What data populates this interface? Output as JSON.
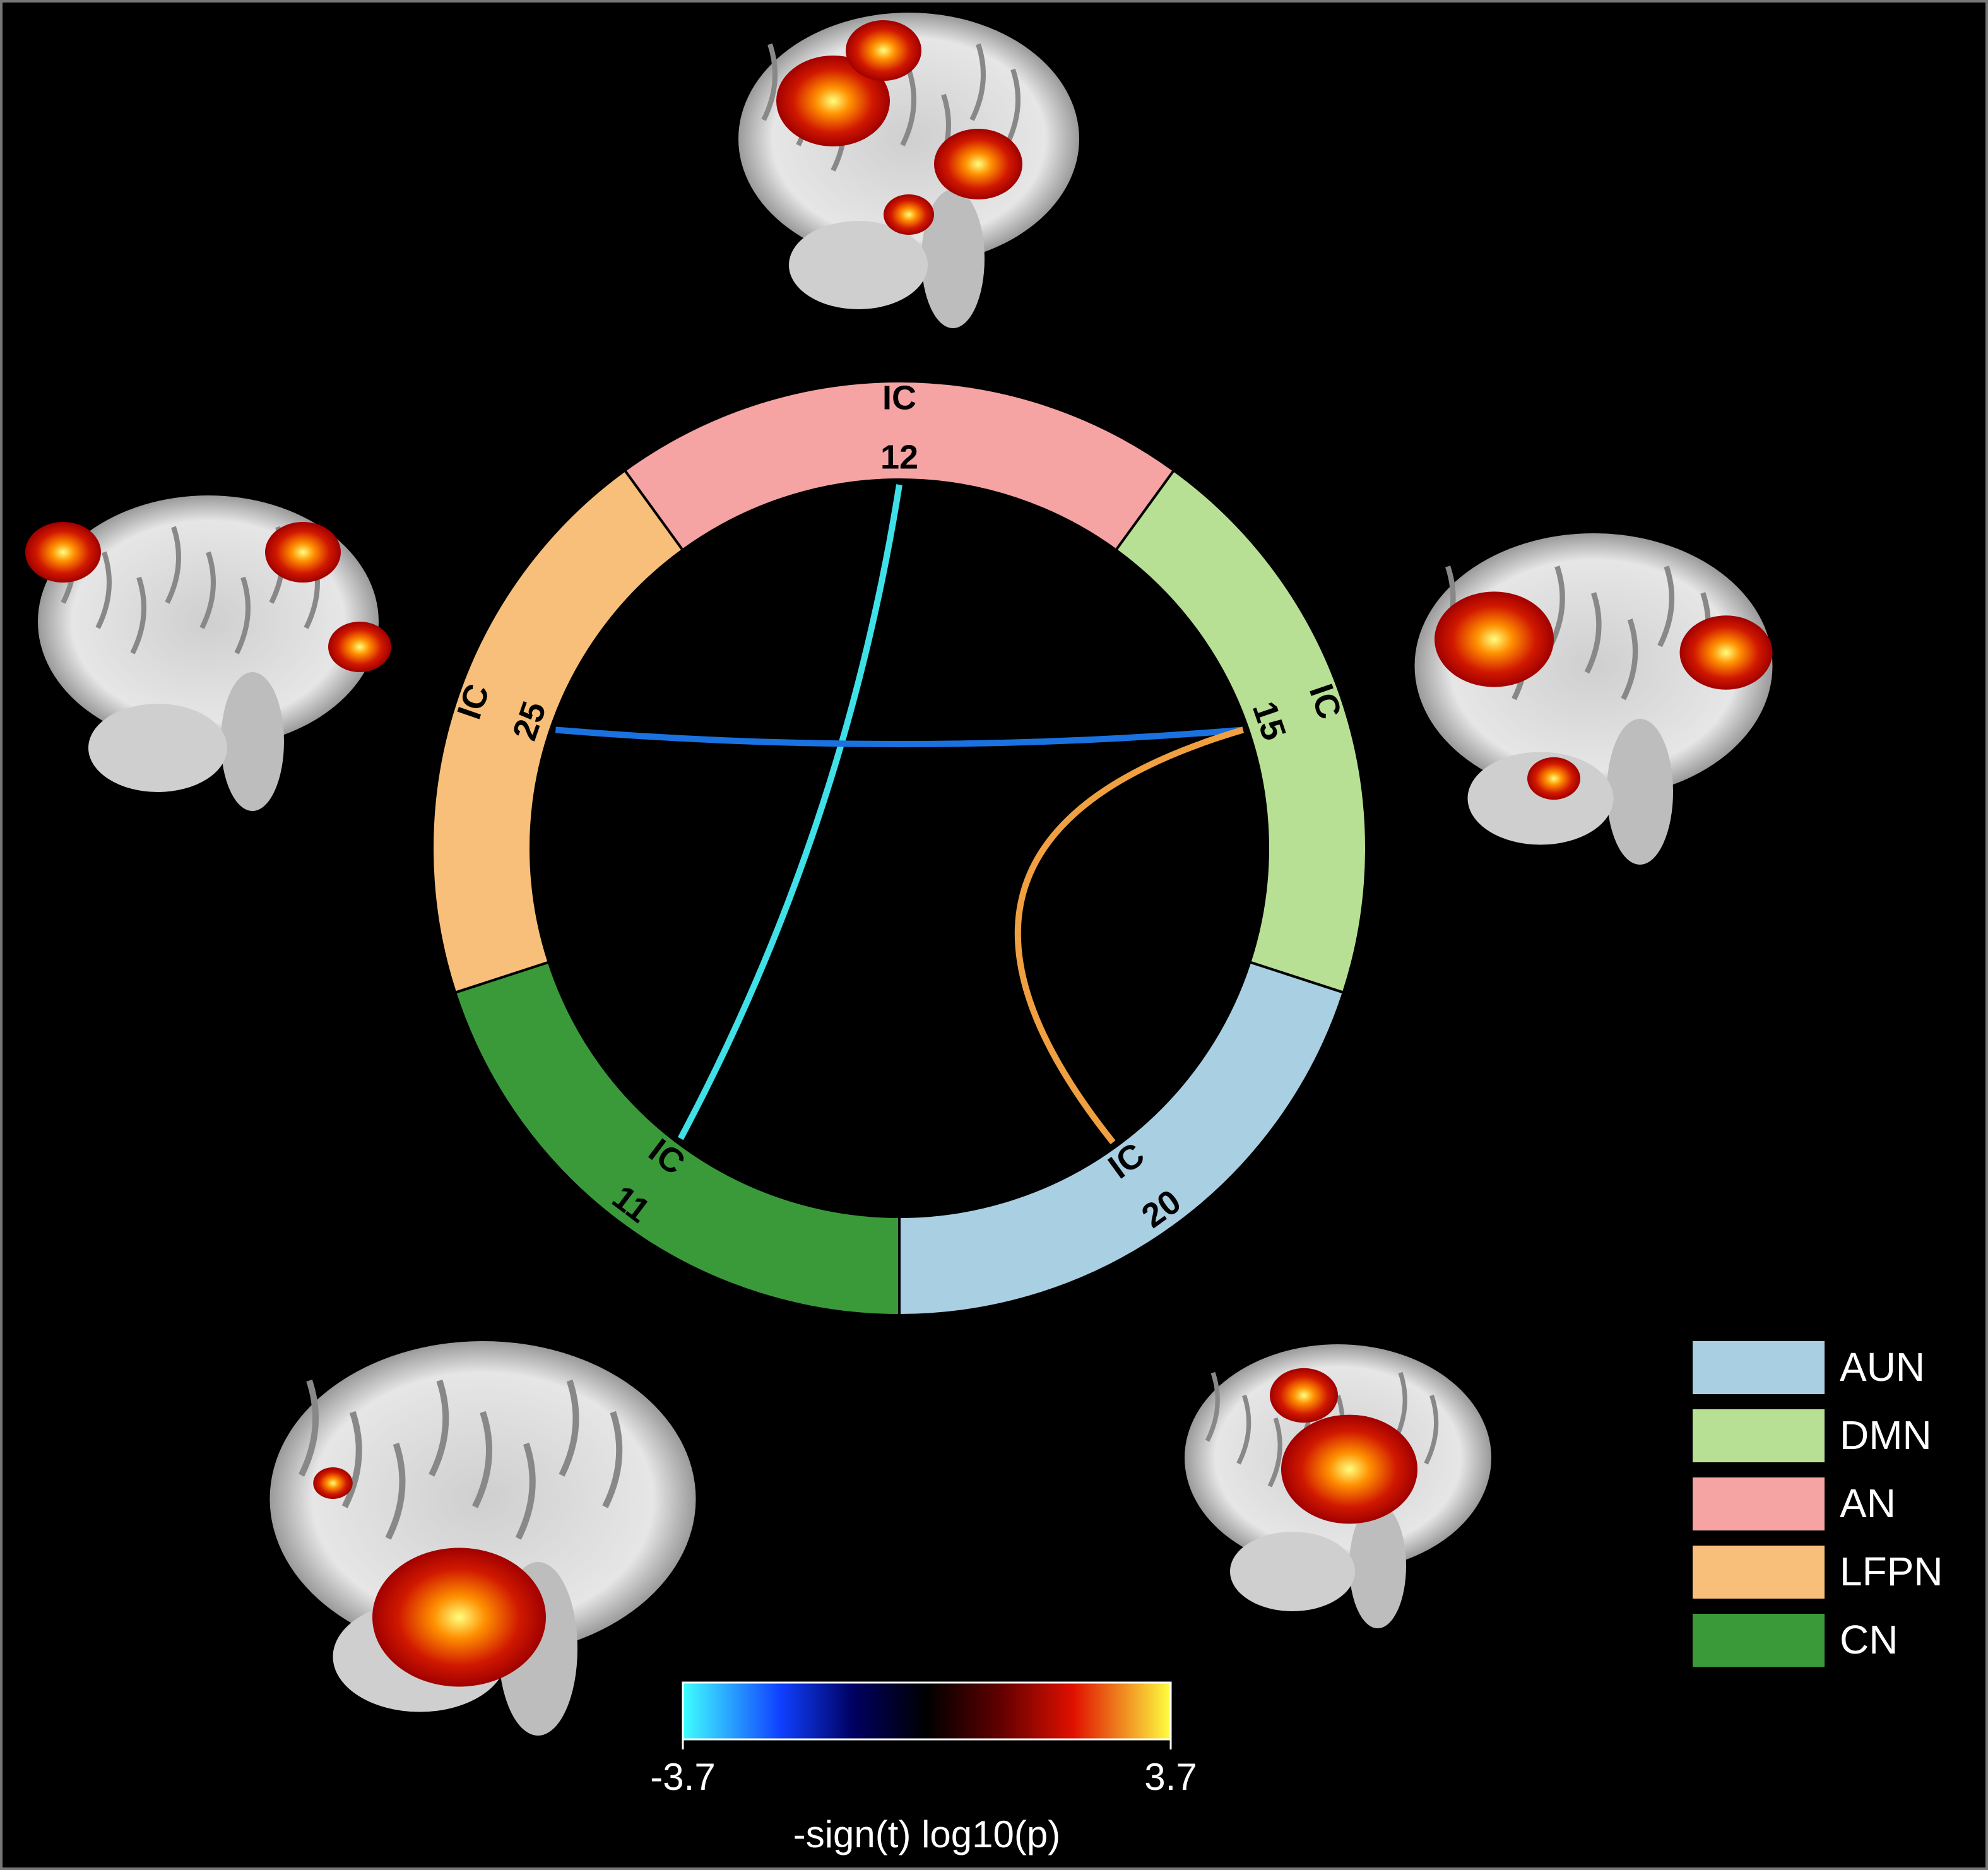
{
  "diagram": {
    "nodes": [
      {
        "label": "IC",
        "number": "12",
        "color": "#f5a3a3"
      },
      {
        "label": "IC",
        "number": "15",
        "color": "#b8e094"
      },
      {
        "label": "IC",
        "number": "20",
        "color": "#a9cfe3"
      },
      {
        "label": "IC",
        "number": "11",
        "color": "#3a9a3a"
      },
      {
        "label": "IC",
        "number": "25",
        "color": "#f7bf7a"
      }
    ],
    "edges": [
      {
        "from": 0,
        "to": 3,
        "color": "#3fe0e8"
      },
      {
        "from": 4,
        "to": 1,
        "color": "#1a72e0"
      },
      {
        "from": 1,
        "to": 2,
        "color": "#f0a040"
      }
    ]
  },
  "legend": [
    {
      "name": "AUN",
      "color": "#a9cfe3"
    },
    {
      "name": "DMN",
      "color": "#b8e094"
    },
    {
      "name": "AN",
      "color": "#f5a3a3"
    },
    {
      "name": "LFPN",
      "color": "#f7bf7a"
    },
    {
      "name": "CN",
      "color": "#3a9a3a"
    }
  ],
  "colorbar": {
    "lim": [
      -3.7,
      3.7
    ],
    "ticks": [
      -3.7,
      3.7
    ],
    "label": "-sign(t) log10(p)"
  }
}
